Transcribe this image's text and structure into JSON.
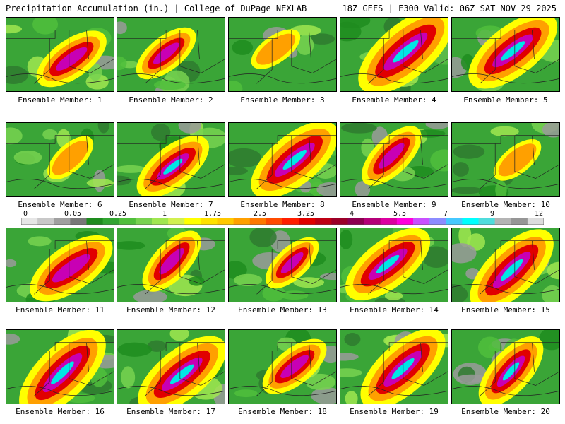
{
  "header": {
    "left": "Precipitation Accumulation (in.) | College of DuPage NEXLAB",
    "right": "18Z GEFS | F300 Valid: 06Z SAT NOV 29 2025"
  },
  "panels": [
    {
      "label": "Ensemble Member: 1",
      "intensity": 0.55,
      "magenta": true,
      "cyan": false
    },
    {
      "label": "Ensemble Member: 2",
      "intensity": 0.45,
      "magenta": true,
      "cyan": false
    },
    {
      "label": "Ensemble Member: 3",
      "intensity": 0.2,
      "magenta": false,
      "cyan": false
    },
    {
      "label": "Ensemble Member: 4",
      "intensity": 0.9,
      "magenta": true,
      "cyan": true
    },
    {
      "label": "Ensemble Member: 5",
      "intensity": 0.8,
      "magenta": true,
      "cyan": true
    },
    {
      "label": "Ensemble Member: 6",
      "intensity": 0.25,
      "magenta": false,
      "cyan": false
    },
    {
      "label": "Ensemble Member: 7",
      "intensity": 0.6,
      "magenta": true,
      "cyan": true
    },
    {
      "label": "Ensemble Member: 8",
      "intensity": 0.8,
      "magenta": true,
      "cyan": true
    },
    {
      "label": "Ensemble Member: 9",
      "intensity": 0.5,
      "magenta": true,
      "cyan": false
    },
    {
      "label": "Ensemble Member: 10",
      "intensity": 0.25,
      "magenta": false,
      "cyan": false
    },
    {
      "label": "Ensemble Member: 11",
      "intensity": 0.7,
      "magenta": true,
      "cyan": false
    },
    {
      "label": "Ensemble Member: 12",
      "intensity": 0.5,
      "magenta": true,
      "cyan": false
    },
    {
      "label": "Ensemble Member: 13",
      "intensity": 0.4,
      "magenta": true,
      "cyan": false
    },
    {
      "label": "Ensemble Member: 14",
      "intensity": 0.75,
      "magenta": true,
      "cyan": true
    },
    {
      "label": "Ensemble Member: 15",
      "intensity": 0.8,
      "magenta": true,
      "cyan": true
    },
    {
      "label": "Ensemble Member: 16",
      "intensity": 0.85,
      "magenta": true,
      "cyan": true
    },
    {
      "label": "Ensemble Member: 17",
      "intensity": 0.8,
      "magenta": true,
      "cyan": true
    },
    {
      "label": "Ensemble Member: 18",
      "intensity": 0.5,
      "magenta": true,
      "cyan": false
    },
    {
      "label": "Ensemble Member: 19",
      "intensity": 0.8,
      "magenta": true,
      "cyan": true
    },
    {
      "label": "Ensemble Member: 20",
      "intensity": 0.6,
      "magenta": true,
      "cyan": true
    }
  ],
  "colorbar": {
    "labels": [
      "0",
      "0.05",
      "0.25",
      "1",
      "1.75",
      "2.5",
      "3.25",
      "4",
      "5.5",
      "7",
      "9",
      "12"
    ],
    "colors": [
      "#e6e6e6",
      "#c8c8c8",
      "#a0a0a0",
      "#787878",
      "#1e8c1e",
      "#32a532",
      "#50be3c",
      "#78d250",
      "#a0e650",
      "#d2f050",
      "#ffff00",
      "#ffe100",
      "#ffc800",
      "#ffa000",
      "#ff7800",
      "#ff4b00",
      "#ff1e00",
      "#e10000",
      "#be0014",
      "#9b0028",
      "#8c0050",
      "#b40078",
      "#dc00a0",
      "#ff00dc",
      "#c850ff",
      "#8c8cff",
      "#46c8ff",
      "#00ffff",
      "#50dcdc",
      "#b4b4b4",
      "#969696",
      "#dcdcdc"
    ]
  }
}
